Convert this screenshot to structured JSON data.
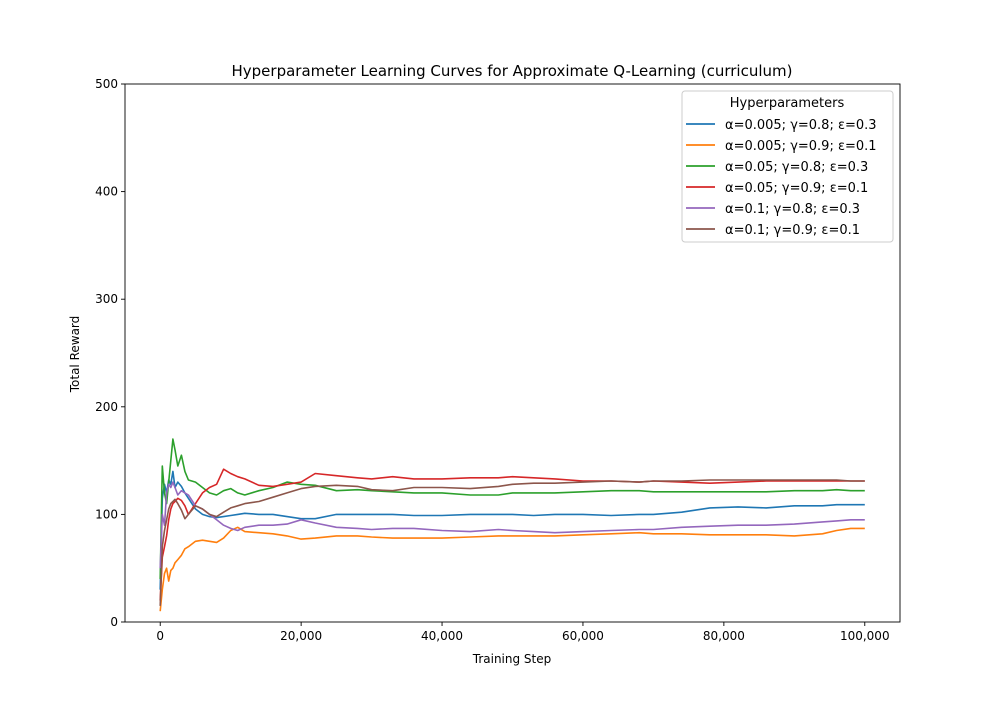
{
  "chart_data": {
    "type": "line",
    "title": "Hyperparameter Learning Curves for Approximate Q-Learning (curriculum)",
    "xlabel": "Training Step",
    "ylabel": "Total Reward",
    "xlim": [
      -5000,
      105000
    ],
    "ylim": [
      0,
      500
    ],
    "x_ticks": [
      0,
      20000,
      40000,
      60000,
      80000,
      100000
    ],
    "x_tick_labels": [
      "0",
      "20,000",
      "40,000",
      "60,000",
      "80,000",
      "100,000"
    ],
    "y_ticks": [
      0,
      100,
      200,
      300,
      400,
      500
    ],
    "y_tick_labels": [
      "0",
      "100",
      "200",
      "300",
      "400",
      "500"
    ],
    "grid": false,
    "legend": {
      "title": "Hyperparameters",
      "placement": "top-right"
    },
    "x": [
      0,
      300,
      600,
      900,
      1200,
      1500,
      1800,
      2100,
      2500,
      3000,
      3500,
      4000,
      5000,
      6000,
      7000,
      8000,
      9000,
      10000,
      11000,
      12000,
      14000,
      16000,
      18000,
      20000,
      22000,
      25000,
      28000,
      30000,
      33000,
      36000,
      40000,
      44000,
      48000,
      50000,
      53000,
      56000,
      60000,
      64000,
      68000,
      70000,
      74000,
      78000,
      82000,
      86000,
      90000,
      94000,
      96000,
      98000,
      100000
    ],
    "series": [
      {
        "name": "α=0.005; γ=0.8; ε=0.3",
        "color": "#1f77b4",
        "values": [
          30,
          115,
          128,
          120,
          132,
          128,
          140,
          125,
          130,
          126,
          120,
          115,
          105,
          100,
          98,
          97,
          98,
          99,
          100,
          101,
          100,
          100,
          98,
          96,
          96,
          100,
          100,
          100,
          100,
          99,
          99,
          100,
          100,
          100,
          99,
          100,
          100,
          99,
          100,
          100,
          102,
          106,
          107,
          106,
          108,
          108,
          109,
          109,
          109
        ]
      },
      {
        "name": "α=0.005; γ=0.9; ε=0.1",
        "color": "#ff7f0e",
        "values": [
          10,
          30,
          45,
          50,
          38,
          48,
          50,
          55,
          58,
          62,
          68,
          70,
          75,
          76,
          75,
          74,
          78,
          85,
          88,
          84,
          83,
          82,
          80,
          77,
          78,
          80,
          80,
          79,
          78,
          78,
          78,
          79,
          80,
          80,
          80,
          80,
          81,
          82,
          83,
          82,
          82,
          81,
          81,
          81,
          80,
          82,
          85,
          87,
          87
        ]
      },
      {
        "name": "α=0.05; γ=0.8; ε=0.3",
        "color": "#2ca02c",
        "values": [
          40,
          145,
          120,
          110,
          130,
          150,
          170,
          160,
          145,
          155,
          140,
          132,
          130,
          125,
          120,
          118,
          122,
          124,
          120,
          118,
          122,
          125,
          130,
          128,
          127,
          122,
          123,
          122,
          121,
          120,
          120,
          118,
          118,
          120,
          120,
          120,
          121,
          122,
          122,
          121,
          121,
          121,
          121,
          121,
          122,
          122,
          123,
          122,
          122
        ]
      },
      {
        "name": "α=0.05; γ=0.9; ε=0.1",
        "color": "#d62728",
        "values": [
          20,
          60,
          70,
          80,
          95,
          105,
          110,
          112,
          115,
          113,
          108,
          100,
          110,
          120,
          125,
          128,
          142,
          138,
          135,
          133,
          127,
          126,
          128,
          130,
          138,
          136,
          134,
          133,
          135,
          133,
          133,
          134,
          134,
          135,
          134,
          133,
          131,
          131,
          130,
          131,
          130,
          129,
          130,
          131,
          131,
          131,
          131,
          131,
          131
        ]
      },
      {
        "name": "α=0.1; γ=0.8; ε=0.3",
        "color": "#9467bd",
        "values": [
          50,
          100,
          90,
          120,
          128,
          125,
          130,
          125,
          118,
          122,
          120,
          118,
          108,
          105,
          100,
          95,
          90,
          87,
          85,
          88,
          90,
          90,
          91,
          95,
          92,
          88,
          87,
          86,
          87,
          87,
          85,
          84,
          86,
          85,
          84,
          83,
          84,
          85,
          86,
          86,
          88,
          89,
          90,
          90,
          91,
          93,
          94,
          95,
          95
        ]
      },
      {
        "name": "α=0.1; γ=0.9; ε=0.1",
        "color": "#8c564b",
        "values": [
          15,
          70,
          85,
          95,
          105,
          110,
          112,
          114,
          110,
          104,
          96,
          100,
          108,
          105,
          100,
          98,
          102,
          106,
          108,
          110,
          112,
          116,
          120,
          124,
          126,
          127,
          126,
          123,
          122,
          125,
          125,
          124,
          126,
          128,
          129,
          129,
          130,
          131,
          130,
          131,
          131,
          132,
          132,
          132,
          132,
          132,
          132,
          131,
          131
        ]
      }
    ]
  }
}
